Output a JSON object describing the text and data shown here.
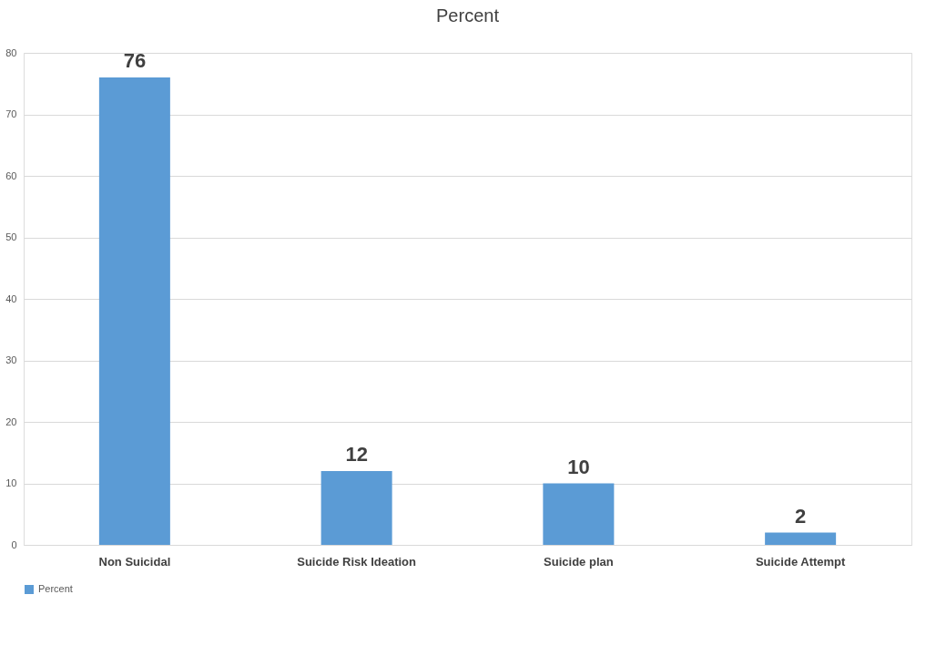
{
  "chart_data": {
    "type": "bar",
    "title": "Percent",
    "categories": [
      "Non Suicidal",
      "Suicide Risk Ideation",
      "Suicide plan",
      "Suicide Attempt"
    ],
    "series": [
      {
        "name": "Percent",
        "color": "#5b9bd5",
        "values": [
          76,
          12,
          10,
          2
        ]
      }
    ],
    "ylim": [
      0,
      80
    ],
    "yticks": [
      0,
      10,
      20,
      30,
      40,
      50,
      60,
      70,
      80
    ],
    "grid": "y",
    "data_labels": true,
    "legend": "bottom"
  }
}
